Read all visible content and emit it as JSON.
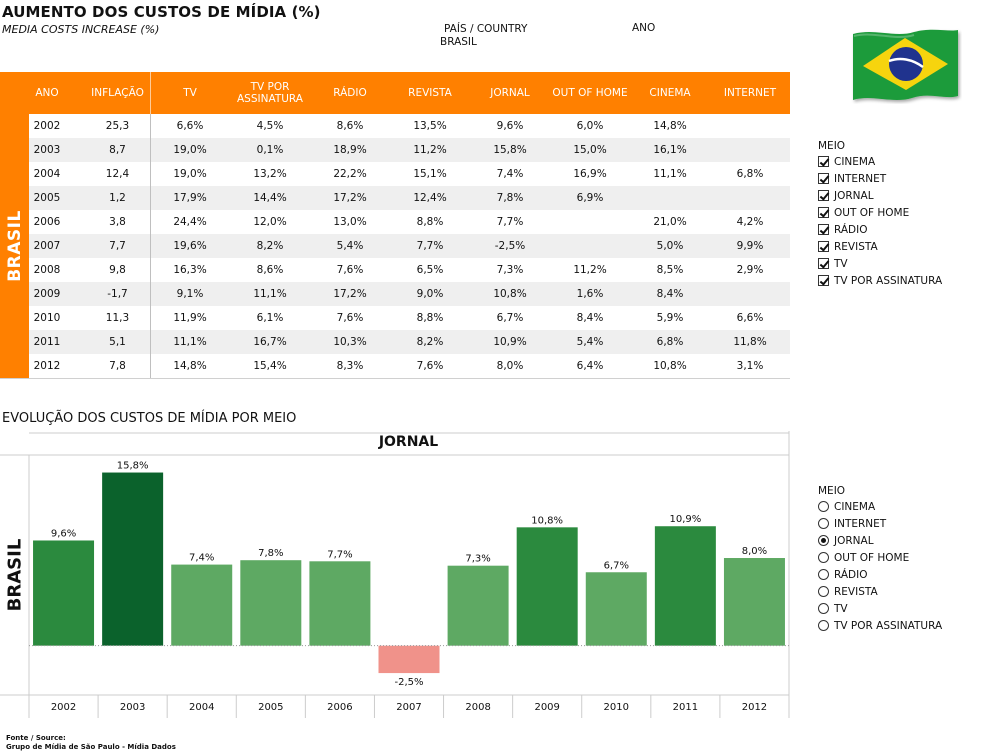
{
  "header": {
    "title": "AUMENTO DOS CUSTOS DE MÍDIA (%)",
    "subtitle": "MEDIA COSTS INCREASE (%)",
    "country_label": "PAÍS / COUNTRY",
    "country_value": "BRASIL",
    "year_label": "ANO"
  },
  "flag": {
    "name": "brazil-flag",
    "green": "#1e9b3b",
    "yellow": "#f6d40e",
    "blue": "#20338e"
  },
  "table": {
    "region": "BRASIL",
    "columns": [
      "ANO",
      "INFLAÇÃO",
      "TV",
      "TV POR ASSINATURA",
      "RÁDIO",
      "REVISTA",
      "JORNAL",
      "OUT OF HOME",
      "CINEMA",
      "INTERNET"
    ],
    "rows": [
      [
        "2002",
        "25,3",
        "6,6%",
        "4,5%",
        "8,6%",
        "13,5%",
        "9,6%",
        "6,0%",
        "14,8%",
        ""
      ],
      [
        "2003",
        "8,7",
        "19,0%",
        "0,1%",
        "18,9%",
        "11,2%",
        "15,8%",
        "15,0%",
        "16,1%",
        ""
      ],
      [
        "2004",
        "12,4",
        "19,0%",
        "13,2%",
        "22,2%",
        "15,1%",
        "7,4%",
        "16,9%",
        "11,1%",
        "6,8%"
      ],
      [
        "2005",
        "1,2",
        "17,9%",
        "14,4%",
        "17,2%",
        "12,4%",
        "7,8%",
        "6,9%",
        "",
        ""
      ],
      [
        "2006",
        "3,8",
        "24,4%",
        "12,0%",
        "13,0%",
        "8,8%",
        "7,7%",
        "",
        "21,0%",
        "4,2%"
      ],
      [
        "2007",
        "7,7",
        "19,6%",
        "8,2%",
        "5,4%",
        "7,7%",
        "-2,5%",
        "",
        "5,0%",
        "9,9%"
      ],
      [
        "2008",
        "9,8",
        "16,3%",
        "8,6%",
        "7,6%",
        "6,5%",
        "7,3%",
        "11,2%",
        "8,5%",
        "2,9%"
      ],
      [
        "2009",
        "-1,7",
        "9,1%",
        "11,1%",
        "17,2%",
        "9,0%",
        "10,8%",
        "1,6%",
        "8,4%",
        ""
      ],
      [
        "2010",
        "11,3",
        "11,9%",
        "6,1%",
        "7,6%",
        "8,8%",
        "6,7%",
        "8,4%",
        "5,9%",
        "6,6%"
      ],
      [
        "2011",
        "5,1",
        "11,1%",
        "16,7%",
        "10,3%",
        "8,2%",
        "10,9%",
        "5,4%",
        "6,8%",
        "11,8%"
      ],
      [
        "2012",
        "7,8",
        "14,8%",
        "15,4%",
        "8,3%",
        "7,6%",
        "8,0%",
        "6,4%",
        "10,8%",
        "3,1%"
      ]
    ]
  },
  "filter_meio_table": {
    "title": "MEIO",
    "items": [
      {
        "label": "CINEMA",
        "checked": true
      },
      {
        "label": "INTERNET",
        "checked": true
      },
      {
        "label": "JORNAL",
        "checked": true
      },
      {
        "label": "OUT OF HOME",
        "checked": true
      },
      {
        "label": "RÁDIO",
        "checked": true
      },
      {
        "label": "REVISTA",
        "checked": true
      },
      {
        "label": "TV",
        "checked": true
      },
      {
        "label": "TV POR ASSINATURA",
        "checked": true
      }
    ]
  },
  "chart_section": {
    "title": "EVOLUÇÃO DOS CUSTOS DE MÍDIA POR MEIO",
    "region": "BRASIL"
  },
  "chart_data": {
    "type": "bar",
    "title": "JORNAL",
    "categories": [
      "2002",
      "2003",
      "2004",
      "2005",
      "2006",
      "2007",
      "2008",
      "2009",
      "2010",
      "2011",
      "2012"
    ],
    "values": [
      9.6,
      15.8,
      7.4,
      7.8,
      7.7,
      -2.5,
      7.3,
      10.8,
      6.7,
      10.9,
      8.0
    ],
    "labels": [
      "9,6%",
      "15,8%",
      "7,4%",
      "7,8%",
      "7,7%",
      "-2,5%",
      "7,3%",
      "10,8%",
      "6,7%",
      "10,9%",
      "8,0%"
    ],
    "ylim": [
      -4.5,
      17.4
    ],
    "grid": false,
    "colors": {
      "high": "#0b622c",
      "mid": "#2b8a3e",
      "low": "#5ea963",
      "negative": "#f0928a"
    }
  },
  "filter_meio_chart": {
    "title": "MEIO",
    "selected": "JORNAL",
    "items": [
      "CINEMA",
      "INTERNET",
      "JORNAL",
      "OUT OF HOME",
      "RÁDIO",
      "REVISTA",
      "TV",
      "TV POR ASSINATURA"
    ]
  },
  "footer": {
    "source_label": "Fonte / Source:",
    "source_text": "Grupo de Mídia de São Paulo - Mídia Dados"
  }
}
